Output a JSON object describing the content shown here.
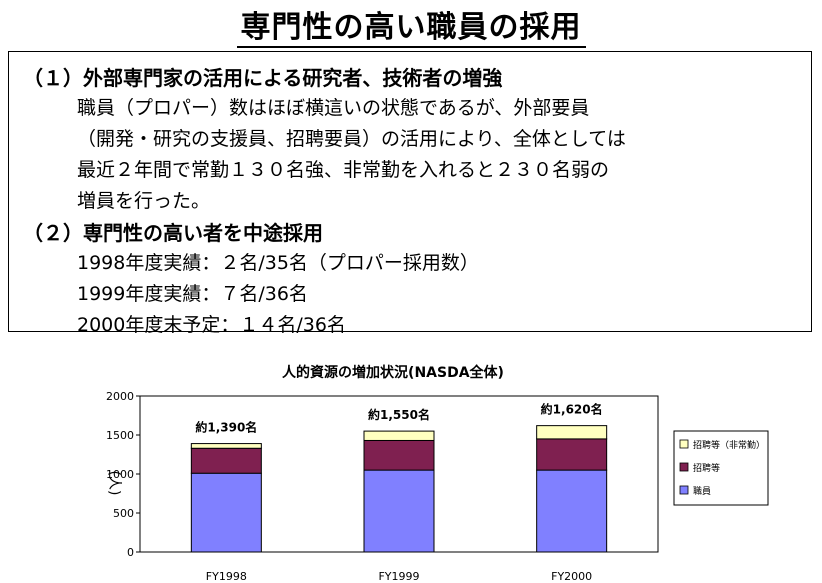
{
  "page_title": "専門性の高い職員の採用",
  "section1": {
    "heading": "（１）外部専門家の活用による研究者、技術者の増強",
    "body": [
      "職員（プロパー）数はほぼ横這いの状態であるが、外部要員",
      "（開発・研究の支援員、招聘要員）の活用により、全体としては",
      "最近２年間で常勤１３０名強、非常勤を入れると２３０名弱の",
      "増員を行った。"
    ]
  },
  "section2": {
    "heading": "（２）専門性の高い者を中途採用",
    "body": [
      "1998年度実績：２名/35名（プロパー採用数）",
      "1999年度実績：７名/36名",
      "2000年度末予定：１４名/36名"
    ]
  },
  "chart_data": {
    "type": "bar",
    "stacked": true,
    "title": "人的資源の増加状況(NASDA全体)",
    "ylabel": "(人)",
    "xlabel": "",
    "ylim": [
      0,
      2000
    ],
    "yticks": [
      "0",
      "500",
      "1000",
      "1500",
      "2000"
    ],
    "categories": [
      "FY1998",
      "FY1999",
      "FY2000"
    ],
    "series": [
      {
        "name": "職員",
        "color": "#8080ff",
        "values": [
          1010,
          1050,
          1050
        ]
      },
      {
        "name": "招聘等",
        "color": "#7f2050",
        "values": [
          320,
          380,
          400
        ]
      },
      {
        "name": "招聘等（非常勤）",
        "color": "#ffffc0",
        "values": [
          60,
          120,
          170
        ]
      }
    ],
    "total_labels": [
      "約1,390名",
      "約1,550名",
      "約1,620名"
    ],
    "legend_position": "right",
    "grid": false
  }
}
